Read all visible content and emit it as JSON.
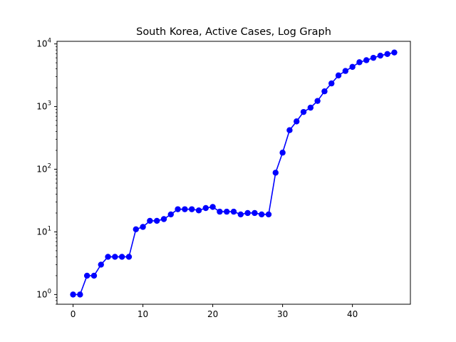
{
  "chart_data": {
    "type": "line",
    "title": "South Korea, Active Cases, Log Graph",
    "xlabel": "",
    "ylabel": "",
    "x": [
      0,
      1,
      2,
      3,
      4,
      5,
      6,
      7,
      8,
      9,
      10,
      11,
      12,
      13,
      14,
      15,
      16,
      17,
      18,
      19,
      20,
      21,
      22,
      23,
      24,
      25,
      26,
      27,
      28,
      29,
      30,
      31,
      32,
      33,
      34,
      35,
      36,
      37,
      38,
      39,
      40,
      41,
      42,
      43,
      44,
      45,
      46
    ],
    "series": [
      {
        "values": [
          1,
          1,
          2,
          2,
          3,
          4,
          4,
          4,
          4,
          11,
          12,
          15,
          15,
          16,
          19,
          23,
          23,
          23,
          22,
          24,
          25,
          21,
          21,
          21,
          19,
          20,
          20,
          19,
          19,
          88,
          184,
          420,
          580,
          820,
          960,
          1230,
          1750,
          2340,
          3140,
          3700,
          4300,
          5100,
          5500,
          6000,
          6500,
          6900,
          7300
        ]
      }
    ],
    "xlim": [
      -2.3,
      48.3
    ],
    "ylim": [
      0.7,
      11000
    ],
    "yscale": "log",
    "xticks": [
      0,
      10,
      20,
      30,
      40
    ],
    "yticks": [
      1,
      10,
      100,
      1000,
      10000
    ],
    "yticks_labels": [
      {
        "base": "10",
        "exp": "0"
      },
      {
        "base": "10",
        "exp": "1"
      },
      {
        "base": "10",
        "exp": "2"
      },
      {
        "base": "10",
        "exp": "3"
      },
      {
        "base": "10",
        "exp": "4"
      }
    ],
    "grid": false,
    "colors": {
      "line": "#0000ff",
      "marker": "#0000ff",
      "axis": "#000000"
    }
  }
}
